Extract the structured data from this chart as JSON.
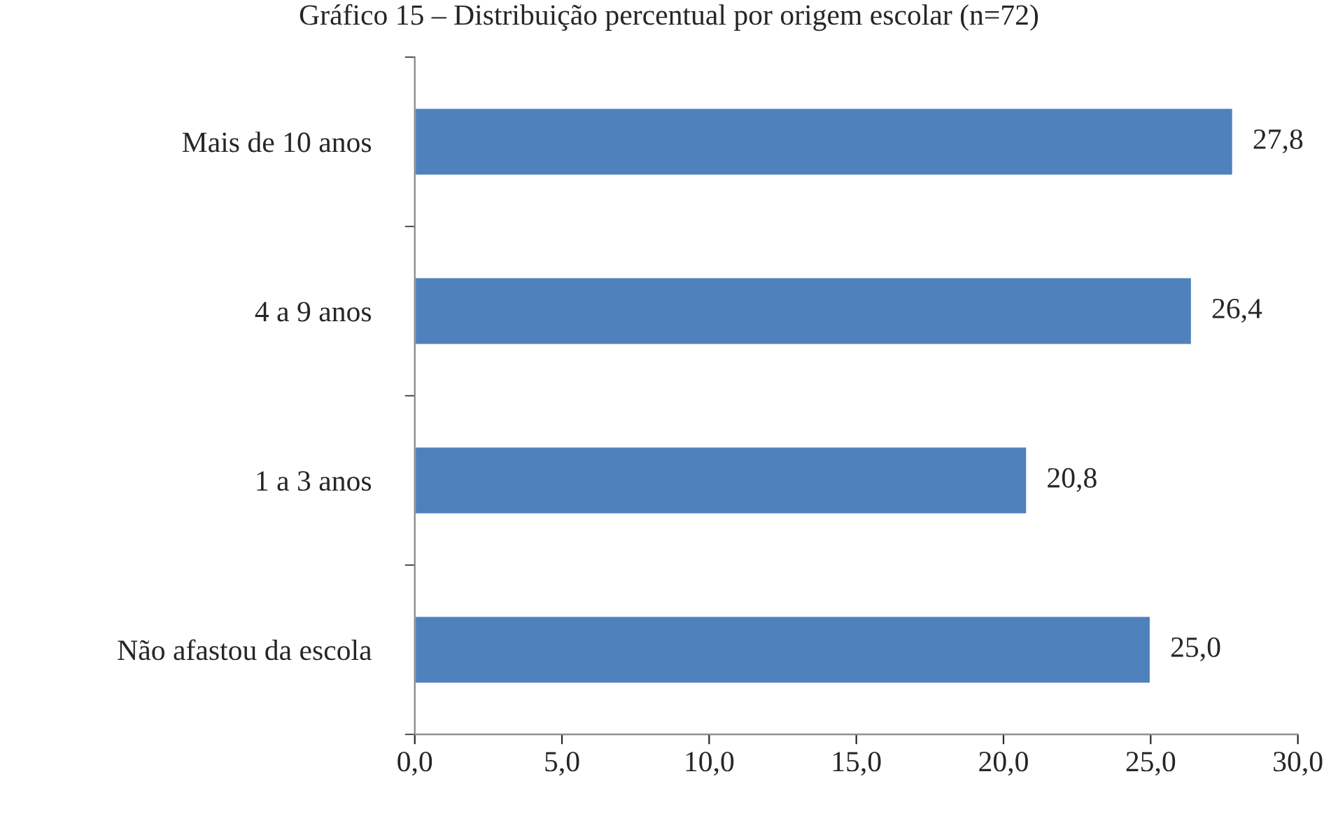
{
  "chart_data": {
    "type": "bar",
    "orientation": "horizontal",
    "title": "Gráfico 15 – Distribuição percentual por origem escolar (n=72)",
    "categories": [
      "Mais de 10 anos",
      "4 a 9 anos",
      "1 a 3 anos",
      "Não afastou da escola"
    ],
    "values": [
      27.8,
      26.4,
      20.8,
      25.0
    ],
    "value_labels": [
      "27,8",
      "26,4",
      "20,8",
      "25,0"
    ],
    "color": "#4f81bd",
    "xlim": [
      0,
      30
    ],
    "xticks": [
      {
        "value": 0,
        "label": "0,0"
      },
      {
        "value": 5,
        "label": "5,0"
      },
      {
        "value": 10,
        "label": "10,0"
      },
      {
        "value": 15,
        "label": "15,0"
      },
      {
        "value": 20,
        "label": "20,0"
      },
      {
        "value": 25,
        "label": "25,0"
      },
      {
        "value": 30,
        "label": "30,0"
      }
    ],
    "grid": false,
    "legend": false
  }
}
